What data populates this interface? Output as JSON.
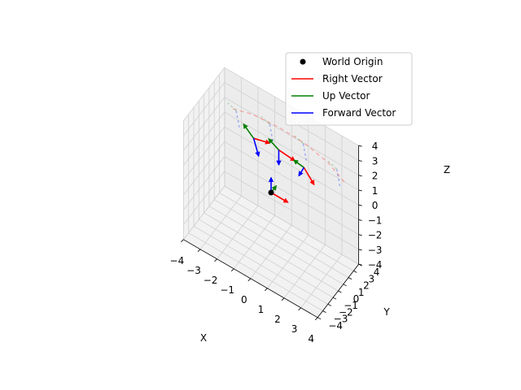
{
  "chart_data": {
    "type": "line",
    "projection": "3d",
    "title": "",
    "xlabel": "X",
    "ylabel": "Y",
    "zlabel": "Z",
    "xlim": [
      -4,
      4
    ],
    "ylim": [
      -4,
      4
    ],
    "zlim": [
      -4,
      4
    ],
    "x_ticks": [
      "−4",
      "−3",
      "−2",
      "−1",
      "0",
      "1",
      "2",
      "3",
      "4"
    ],
    "y_ticks": [
      "−4",
      "−3",
      "−2",
      "−1",
      "0",
      "1",
      "2",
      "3",
      "4"
    ],
    "z_ticks": [
      "−4",
      "−3",
      "−2",
      "−1",
      "0",
      "1",
      "2",
      "3",
      "4"
    ],
    "grid": true,
    "legend_position": "top-right",
    "legend": [
      {
        "label": "World Origin",
        "color": "#000000",
        "marker": "dot"
      },
      {
        "label": "Right Vector",
        "color": "#ff0000",
        "marker": "line"
      },
      {
        "label": "Up Vector",
        "color": "#008000",
        "marker": "line"
      },
      {
        "label": "Forward Vector",
        "color": "#0000ff",
        "marker": "line"
      }
    ],
    "world_origin": [
      0,
      0,
      0
    ],
    "frames": [
      {
        "origin": [
          0,
          0,
          0
        ],
        "right": [
          1,
          0,
          0
        ],
        "up": [
          0,
          1,
          0
        ],
        "forward": [
          0,
          0,
          1
        ]
      },
      {
        "origin": [
          -1.5,
          1.5,
          2
        ],
        "right": [
          0.95,
          0,
          0.3
        ],
        "up": [
          -0.6,
          0,
          0.55
        ],
        "forward": [
          0.3,
          0,
          -1
        ]
      },
      {
        "origin": [
          0,
          1.5,
          2.2
        ],
        "right": [
          0.95,
          0,
          -0.1
        ],
        "up": [
          -0.6,
          0,
          0.35
        ],
        "forward": [
          0,
          0,
          -1
        ]
      },
      {
        "origin": [
          1.5,
          1.5,
          2
        ],
        "right": [
          0.6,
          0,
          -0.75
        ],
        "up": [
          -0.6,
          0,
          0.1
        ],
        "forward": [
          -0.3,
          0,
          -0.75
        ]
      }
    ],
    "ghost_frames": [
      {
        "origin": [
          -3,
          3,
          2.2
        ]
      },
      {
        "origin": [
          -1,
          3,
          2.6
        ]
      },
      {
        "origin": [
          1,
          3,
          2.6
        ]
      },
      {
        "origin": [
          3,
          3,
          2.2
        ]
      }
    ],
    "ghost_path": [
      [
        -3.2,
        3,
        2.2
      ],
      [
        -2,
        3,
        2.6
      ],
      [
        -0.5,
        3,
        2.75
      ],
      [
        1,
        3,
        2.7
      ],
      [
        2.5,
        3,
        2.3
      ],
      [
        3.5,
        3,
        1.6
      ]
    ]
  }
}
